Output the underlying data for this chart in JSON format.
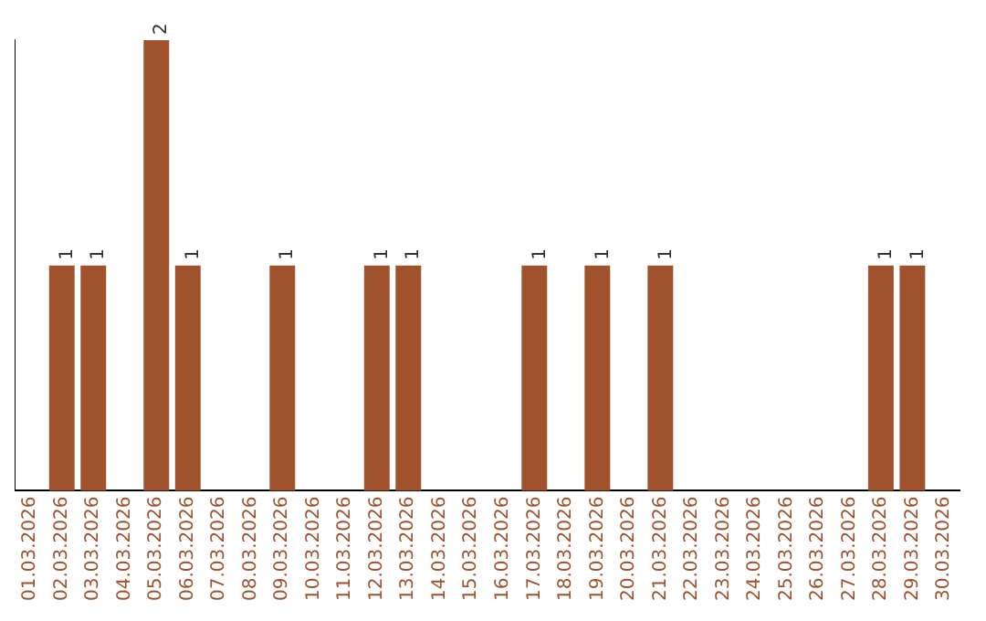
{
  "chart_data": {
    "type": "bar",
    "categories": [
      "01.03.2026",
      "02.03.2026",
      "03.03.2026",
      "04.03.2026",
      "05.03.2026",
      "06.03.2026",
      "07.03.2026",
      "08.03.2026",
      "09.03.2026",
      "10.03.2026",
      "11.03.2026",
      "12.03.2026",
      "13.03.2026",
      "14.03.2026",
      "15.03.2026",
      "16.03.2026",
      "17.03.2026",
      "18.03.2026",
      "19.03.2026",
      "20.03.2026",
      "21.03.2026",
      "22.03.2026",
      "23.03.2026",
      "24.03.2026",
      "25.03.2026",
      "26.03.2026",
      "27.03.2026",
      "28.03.2026",
      "29.03.2026",
      "30.03.2026"
    ],
    "values": [
      0,
      1,
      1,
      0,
      2,
      1,
      0,
      0,
      1,
      0,
      0,
      1,
      1,
      0,
      0,
      0,
      1,
      0,
      1,
      0,
      1,
      0,
      0,
      0,
      0,
      0,
      0,
      1,
      1,
      0
    ],
    "value_labels": [
      null,
      "1",
      "1",
      null,
      "2",
      "1",
      null,
      null,
      "1",
      null,
      null,
      "1",
      "1",
      null,
      null,
      null,
      "1",
      null,
      "1",
      null,
      "1",
      null,
      null,
      null,
      null,
      null,
      null,
      "1",
      "1",
      null
    ],
    "color": "#a0522d",
    "grid": false,
    "legend": false,
    "tick_labels": "x"
  }
}
